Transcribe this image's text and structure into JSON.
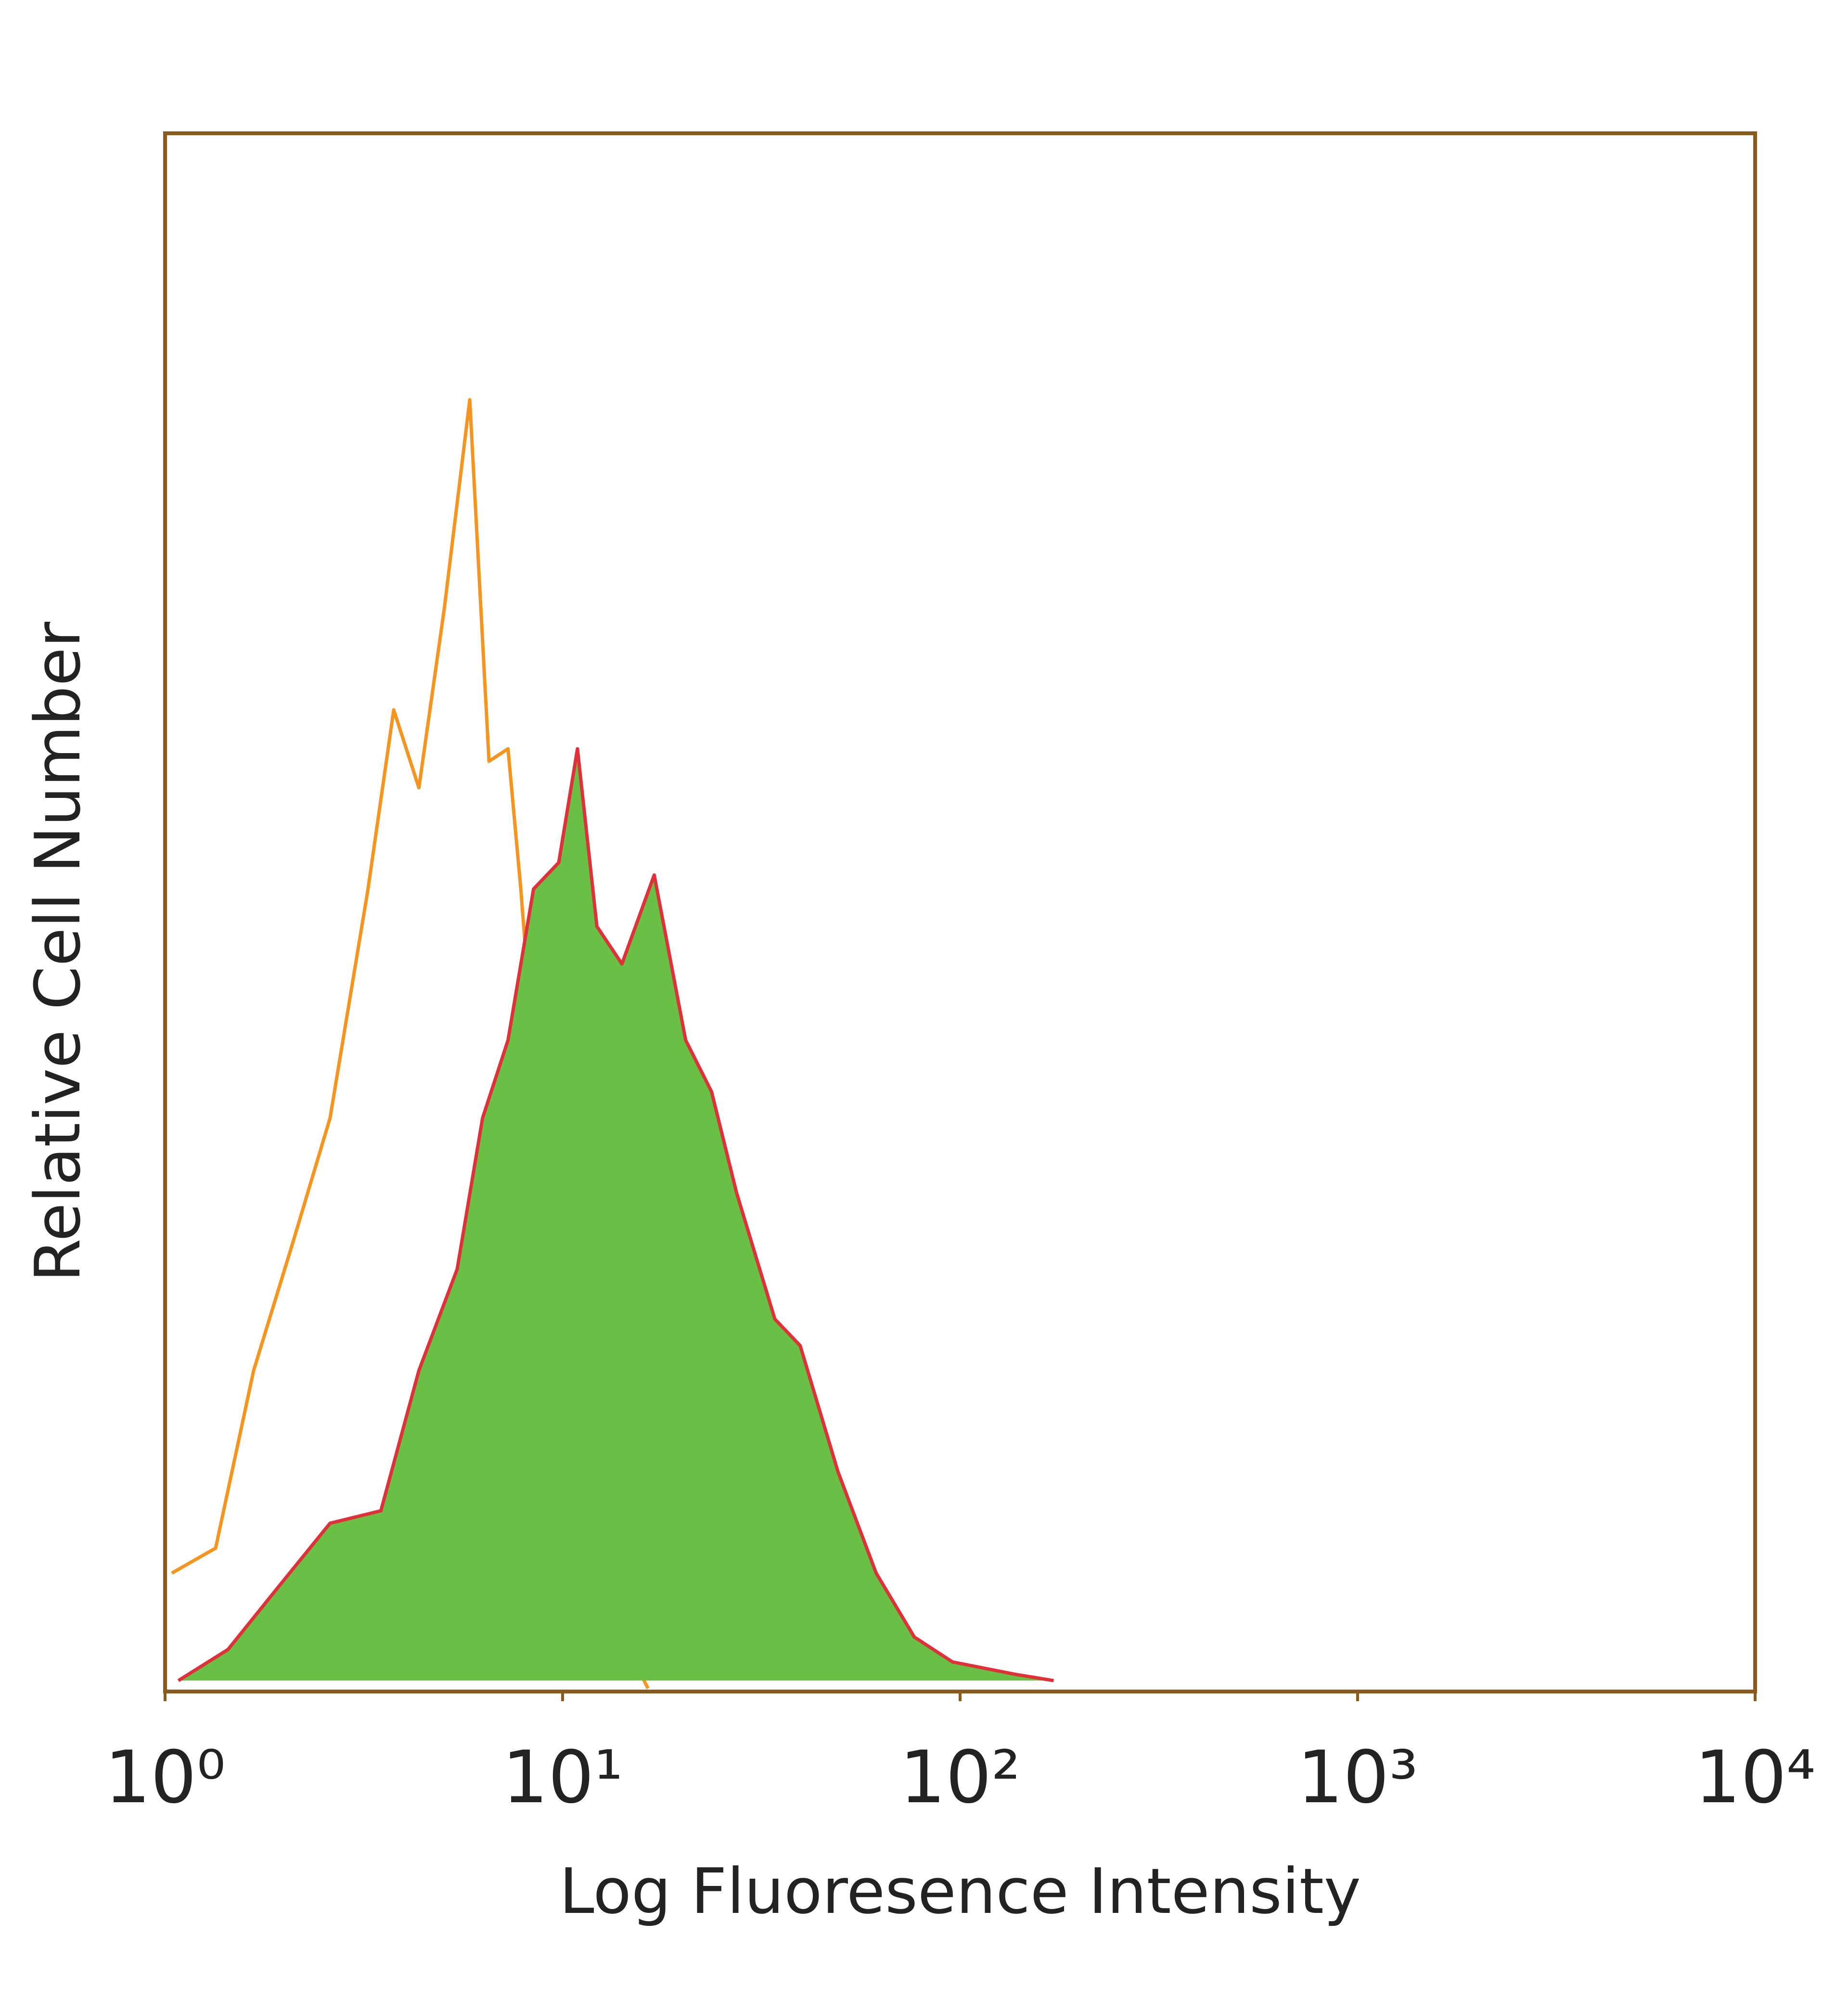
{
  "chart_data": {
    "type": "histogram-overlay",
    "xlabel": "Log Fluoresence Intensity",
    "ylabel": "Relative Cell Number",
    "xscale": "log",
    "xlim": [
      1,
      10000
    ],
    "ylim": [
      0,
      100
    ],
    "xticks": [
      {
        "value": 1,
        "label": "10⁰"
      },
      {
        "value": 10,
        "label": "10¹"
      },
      {
        "value": 100,
        "label": "10²"
      },
      {
        "value": 1000,
        "label": "10³"
      },
      {
        "value": 10000,
        "label": "10⁴"
      }
    ],
    "frame_color": "#8a5a1e",
    "series": [
      {
        "color": "#f7941d",
        "filled": false,
        "x": [
          1.04,
          1.34,
          1.67,
          2.09,
          2.6,
          3.24,
          3.76,
          4.35,
          5.04,
          5.84,
          6.53,
          7.29,
          7.85,
          8.45,
          9.78,
          11.3,
          14.1,
          16.4
        ],
        "values": [
          7.6,
          9.2,
          20.6,
          28.7,
          36.8,
          51.5,
          63,
          58,
          69.5,
          82.9,
          59.7,
          60.5,
          51.5,
          41,
          20.6,
          10.8,
          3.5,
          0.2
        ]
      },
      {
        "color": "#e0303a",
        "fill": "#6abf45",
        "filled": true,
        "x": [
          1.08,
          1.44,
          1.94,
          2.6,
          3.49,
          4.35,
          5.43,
          6.29,
          7.29,
          8.45,
          9.78,
          10.9,
          12.2,
          14.1,
          17.0,
          20.4,
          23.7,
          27.4,
          34.2,
          39.6,
          49.3,
          61.5,
          76.7,
          95.7,
          138,
          172
        ],
        "values": [
          0.7,
          2.7,
          6.8,
          10.8,
          11.6,
          20.6,
          27.1,
          36.8,
          41.8,
          51.5,
          53.2,
          60.5,
          49.1,
          46.7,
          52.4,
          41.8,
          38.5,
          32,
          23.9,
          22.2,
          14.1,
          7.6,
          3.5,
          1.9,
          1.1,
          0.7
        ]
      }
    ]
  }
}
